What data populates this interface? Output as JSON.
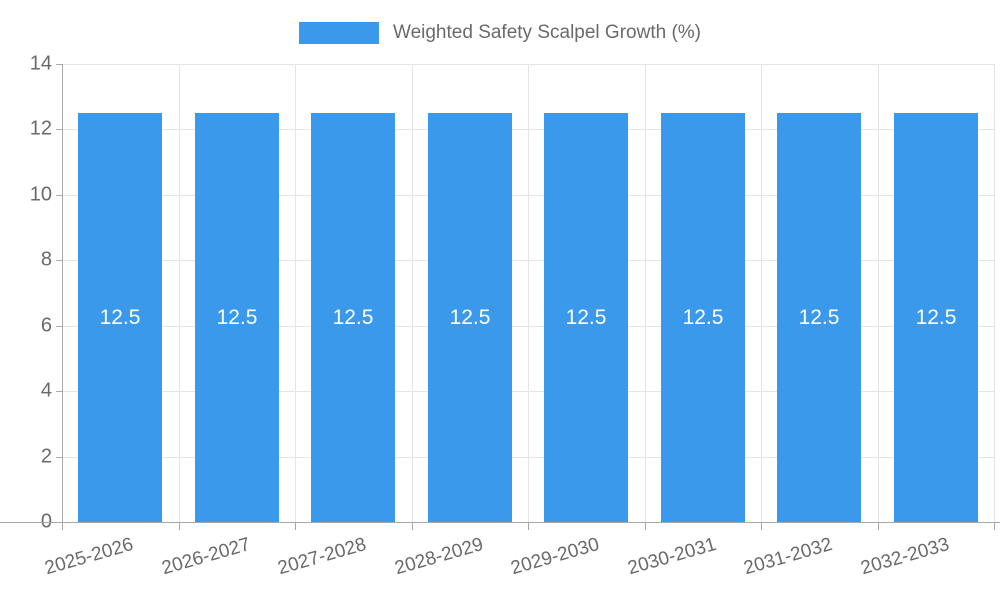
{
  "chart_data": {
    "type": "bar",
    "title": "",
    "legend": "Weighted Safety Scalpel Growth (%)",
    "legend_position": "top",
    "categories": [
      "2025-2026",
      "2026-2027",
      "2027-2028",
      "2028-2029",
      "2029-2030",
      "2030-2031",
      "2031-2032",
      "2032-2033"
    ],
    "values": [
      12.5,
      12.5,
      12.5,
      12.5,
      12.5,
      12.5,
      12.5,
      12.5
    ],
    "bar_labels": [
      "12.5",
      "12.5",
      "12.5",
      "12.5",
      "12.5",
      "12.5",
      "12.5",
      "12.5"
    ],
    "xlabel": "",
    "ylabel": "",
    "ylim": [
      0,
      14
    ],
    "yticks": [
      "0",
      "2",
      "4",
      "6",
      "8",
      "10",
      "12",
      "14"
    ],
    "grid": "on",
    "colors": {
      "bar": "#3B99EC",
      "grid": "#E5E5E5",
      "axis": "#A8A8A8",
      "text": "#6A6A6A",
      "bar_label": "#FFFFFF"
    }
  }
}
